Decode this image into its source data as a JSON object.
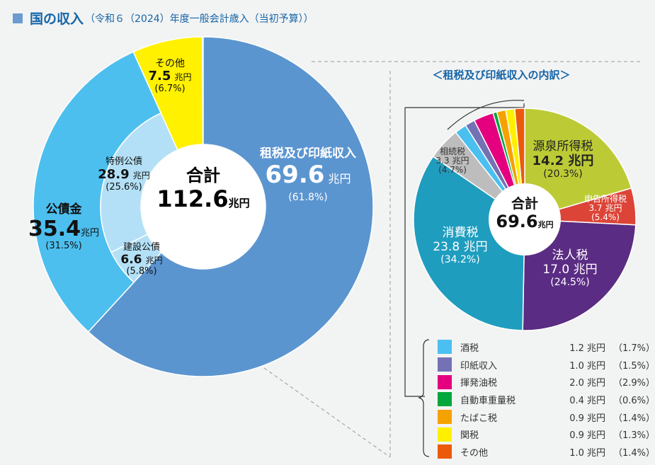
{
  "title": {
    "main": "国の収入",
    "sub": "（令和６（2024）年度一般会計歳入（当初予算））"
  },
  "chart_data": [
    {
      "type": "pie",
      "name": "main-donut",
      "unit": "兆円",
      "total": {
        "label": "合計",
        "value": 112.6
      },
      "outer": [
        {
          "name": "租税及び印紙収入",
          "value": 69.6,
          "pct": "61.8%",
          "color": "#5b95d0"
        },
        {
          "name": "公債金",
          "value": 35.4,
          "pct": "31.5%",
          "color": "#4cbfee"
        },
        {
          "name": "その他",
          "value": 7.5,
          "pct": "6.7%",
          "color": "#fff100"
        }
      ],
      "inner": [
        {
          "name": "建設公債",
          "value": 6.6,
          "pct": "5.8%",
          "color": "#b3e0f6"
        },
        {
          "name": "特例公債",
          "value": 28.9,
          "pct": "25.6%",
          "color": "#b3e0f6"
        }
      ]
    },
    {
      "type": "pie",
      "name": "tax-breakdown",
      "title": "＜租税及び印紙収入の内訳＞",
      "unit": "兆円",
      "total": {
        "label": "合計",
        "value": 69.6
      },
      "slices": [
        {
          "name": "源泉所得税",
          "value": 14.2,
          "pct": "20.3%",
          "color": "#bccb35"
        },
        {
          "name": "申告所得税",
          "value": 3.7,
          "pct": "5.4%",
          "color": "#dc4437"
        },
        {
          "name": "法人税",
          "value": 17.0,
          "pct": "24.5%",
          "color": "#5b2c83"
        },
        {
          "name": "消費税",
          "value": 23.8,
          "pct": "34.2%",
          "color": "#1f9dbf"
        },
        {
          "name": "相続税",
          "value": 3.3,
          "pct": "4.7%",
          "color": "#bdbdbd"
        },
        {
          "name": "酒税",
          "value": 1.2,
          "pct": "1.7%",
          "color": "#4bc0f0"
        },
        {
          "name": "印紙収入",
          "value": 1.0,
          "pct": "1.5%",
          "color": "#7571b5"
        },
        {
          "name": "揮発油税",
          "value": 2.0,
          "pct": "2.9%",
          "color": "#e4007f"
        },
        {
          "name": "自動車重量税",
          "value": 0.4,
          "pct": "0.6%",
          "color": "#00a73c"
        },
        {
          "name": "たばこ税",
          "value": 0.9,
          "pct": "1.4%",
          "color": "#f5a200"
        },
        {
          "name": "関税",
          "value": 0.9,
          "pct": "1.3%",
          "color": "#fff000"
        },
        {
          "name": "その他",
          "value": 1.0,
          "pct": "1.4%",
          "color": "#eb5a0a"
        }
      ]
    }
  ],
  "labels": {
    "total_main": "合計",
    "total_main_val": "112.6",
    "unit": "兆円",
    "tax": "租税及び印紙収入",
    "tax_val": "69.6",
    "tax_pct": "(61.8%)",
    "bond": "公債金",
    "bond_val": "35.4",
    "bond_pct": "(31.5%)",
    "other": "その他",
    "other_val": "7.5",
    "other_pct": "(6.7%)",
    "special": "特例公債",
    "special_val": "28.9",
    "special_pct": "(25.6%)",
    "constr": "建設公債",
    "constr_val": "6.6",
    "constr_pct": "(5.8%)",
    "r_total": "合計",
    "r_total_val": "69.6",
    "gensen": "源泉所得税",
    "gensen_val": "14.2 兆円",
    "gensen_pct": "(20.3%)",
    "shinkoku": "申告所得税",
    "shinkoku_val": "3.7 兆円",
    "shinkoku_pct": "(5.4%)",
    "hojin": "法人税",
    "hojin_val": "17.0 兆円",
    "hojin_pct": "(24.5%)",
    "shohi": "消費税",
    "shohi_val": "23.8 兆円",
    "shohi_pct": "(34.2%)",
    "sozoku": "相続税",
    "sozoku_val": "3.3 兆円",
    "sozoku_pct": "(4.7%)"
  },
  "legend": [
    {
      "name": "酒税",
      "val": "1.2 兆円",
      "pct": "（1.7%）",
      "color": "#4bc0f0"
    },
    {
      "name": "印紙収入",
      "val": "1.0 兆円",
      "pct": "（1.5%）",
      "color": "#7571b5"
    },
    {
      "name": "揮発油税",
      "val": "2.0 兆円",
      "pct": "（2.9%）",
      "color": "#e4007f"
    },
    {
      "name": "自動車重量税",
      "val": "0.4 兆円",
      "pct": "（0.6%）",
      "color": "#00a73c"
    },
    {
      "name": "たばこ税",
      "val": "0.9 兆円",
      "pct": "（1.4%）",
      "color": "#f5a200"
    },
    {
      "name": "関税",
      "val": "0.9 兆円",
      "pct": "（1.3%）",
      "color": "#fff000"
    },
    {
      "name": "その他",
      "val": "1.0 兆円",
      "pct": "（1.4%）",
      "color": "#eb5a0a"
    }
  ]
}
